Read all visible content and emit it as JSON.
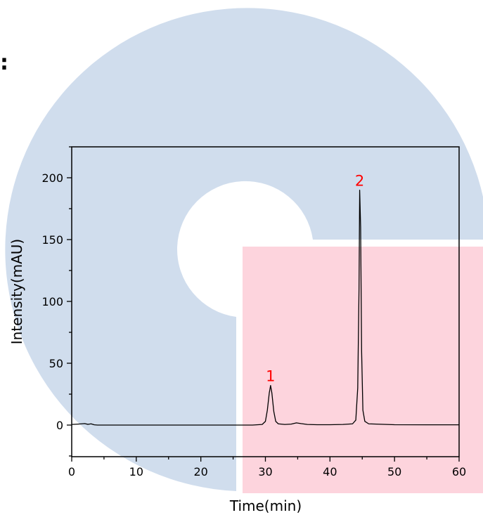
{
  "page": {
    "fragment_text": ":"
  },
  "colors": {
    "logo_blue": "#d0dded",
    "logo_pink": "#fdd4dd",
    "trace": "#000000",
    "peak_label": "#ff0000",
    "axis": "#000000"
  },
  "chart_data": {
    "type": "line",
    "title": "",
    "xlabel": "Time(min)",
    "ylabel": "Intensity(mAU)",
    "xlim": [
      0,
      60
    ],
    "ylim": [
      -25,
      225
    ],
    "x_ticks": [
      0,
      10,
      20,
      30,
      40,
      50,
      60
    ],
    "y_ticks": [
      0,
      50,
      100,
      150,
      200
    ],
    "grid": false,
    "legend": "none",
    "series": [
      {
        "x": [
          0,
          1,
          2,
          2.5,
          3,
          3.5,
          4,
          6,
          10,
          15,
          20,
          25,
          28,
          29.5,
          30.0,
          30.3,
          30.6,
          30.8,
          31.0,
          31.3,
          31.6,
          32.0,
          33.0,
          34.0,
          34.8,
          35.5,
          36.5,
          38,
          40,
          42,
          43.5,
          44.0,
          44.3,
          44.5,
          44.6,
          44.75,
          44.9,
          45.1,
          45.4,
          46,
          50,
          55,
          60
        ],
        "y": [
          0.5,
          0.8,
          1.2,
          0.6,
          1.0,
          0.2,
          0.0,
          0.0,
          0.0,
          0.0,
          0.0,
          0.0,
          0.0,
          0.5,
          3,
          12,
          26,
          32,
          26,
          11,
          3,
          1.0,
          0.5,
          0.8,
          1.8,
          1.2,
          0.5,
          0.3,
          0.3,
          0.5,
          1.0,
          4,
          30,
          110,
          190,
          160,
          60,
          12,
          3,
          1.0,
          0.3,
          0.2,
          0.2
        ]
      }
    ],
    "annotations": [
      {
        "text": "1",
        "x": 30.8,
        "y": 32
      },
      {
        "text": "2",
        "x": 44.6,
        "y": 190
      }
    ]
  }
}
